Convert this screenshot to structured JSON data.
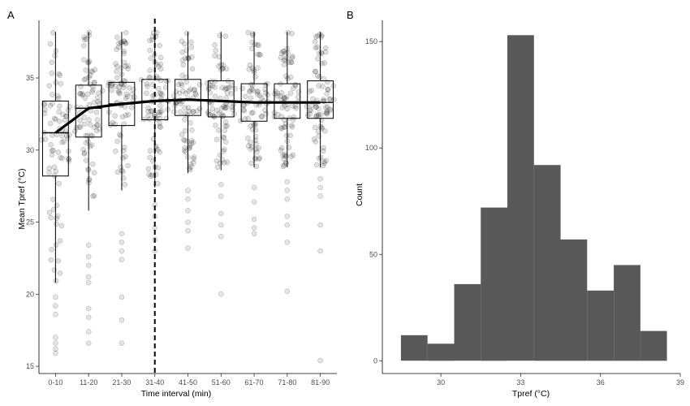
{
  "chart_data": [
    {
      "panel": "A",
      "type": "box",
      "xlabel": "Time interval (min)",
      "ylabel": "Mean Tpref (°C)",
      "ylim": [
        14.5,
        39
      ],
      "yticks": [
        15,
        20,
        25,
        30,
        35
      ],
      "categories": [
        "0-10",
        "11-20",
        "21-30",
        "31-40",
        "41-50",
        "51-60",
        "61-70",
        "71-80",
        "81-90"
      ],
      "boxes": [
        {
          "whisker_low": 20.8,
          "q1": 28.2,
          "median": 31.2,
          "q3": 33.4,
          "whisker_high": 38.2,
          "outliers": [
            19.8,
            19.2,
            18.6,
            17.0,
            16.6,
            16.2,
            15.9
          ]
        },
        {
          "whisker_low": 25.8,
          "q1": 30.9,
          "median": 32.9,
          "q3": 34.5,
          "whisker_high": 38.2,
          "outliers": [
            23.4,
            22.6,
            22.0,
            21.2,
            20.8,
            19.0,
            18.4,
            17.4,
            16.6
          ]
        },
        {
          "whisker_low": 27.2,
          "q1": 31.7,
          "median": 33.2,
          "q3": 34.7,
          "whisker_high": 38.2,
          "outliers": [
            24.2,
            23.6,
            23.0,
            22.4,
            19.8,
            18.2,
            16.6
          ]
        },
        {
          "whisker_low": 27.4,
          "q1": 32.1,
          "median": 33.4,
          "q3": 34.9,
          "whisker_high": 38.2,
          "outliers": [
            26.2,
            25.4,
            24.6,
            23.8,
            23.0
          ]
        },
        {
          "whisker_low": 28.4,
          "q1": 32.4,
          "median": 33.5,
          "q3": 34.9,
          "whisker_high": 38.2,
          "outliers": [
            27.2,
            26.6,
            25.8,
            25.0,
            24.4,
            23.2
          ]
        },
        {
          "whisker_low": 28.6,
          "q1": 32.3,
          "median": 33.4,
          "q3": 34.8,
          "whisker_high": 38.2,
          "outliers": [
            27.6,
            26.8,
            25.6,
            24.8,
            24.0,
            20.0
          ]
        },
        {
          "whisker_low": 28.8,
          "q1": 32.0,
          "median": 33.3,
          "q3": 34.6,
          "whisker_high": 38.2,
          "outliers": [
            27.4,
            26.4,
            25.2,
            24.6,
            24.2
          ]
        },
        {
          "whisker_low": 28.8,
          "q1": 32.2,
          "median": 33.3,
          "q3": 34.6,
          "whisker_high": 38.2,
          "outliers": [
            27.8,
            27.2,
            26.6,
            25.4,
            24.8,
            23.6,
            20.2
          ]
        },
        {
          "whisker_low": 28.8,
          "q1": 32.2,
          "median": 33.3,
          "q3": 34.8,
          "whisker_high": 38.2,
          "outliers": [
            28.0,
            27.4,
            26.8,
            24.8,
            23.0,
            15.4
          ]
        }
      ],
      "median_line": [
        31.2,
        32.9,
        33.2,
        33.4,
        33.5,
        33.4,
        33.3,
        33.3,
        33.3
      ],
      "vline_category": "31-40",
      "vline_style": "dashed",
      "points_per_category": 80,
      "jitter": true,
      "point_color": "#000000",
      "point_alpha": 0.12
    },
    {
      "panel": "B",
      "type": "histogram",
      "xlabel": "Tpref (°C)",
      "ylabel": "Count",
      "xlim": [
        27.8,
        39
      ],
      "ylim": [
        -6,
        160
      ],
      "xticks": [
        30,
        33,
        36,
        39
      ],
      "yticks": [
        0,
        50,
        100,
        150
      ],
      "bins": [
        {
          "x0": 28.5,
          "x1": 29.5,
          "count": 12
        },
        {
          "x0": 29.5,
          "x1": 30.5,
          "count": 8
        },
        {
          "x0": 30.5,
          "x1": 31.5,
          "count": 36
        },
        {
          "x0": 31.5,
          "x1": 32.5,
          "count": 72
        },
        {
          "x0": 32.5,
          "x1": 33.5,
          "count": 153
        },
        {
          "x0": 33.5,
          "x1": 34.5,
          "count": 92
        },
        {
          "x0": 34.5,
          "x1": 35.5,
          "count": 57
        },
        {
          "x0": 35.5,
          "x1": 36.5,
          "count": 33
        },
        {
          "x0": 36.5,
          "x1": 37.5,
          "count": 45
        },
        {
          "x0": 37.5,
          "x1": 38.5,
          "count": 14
        }
      ],
      "bar_color": "#595959"
    }
  ]
}
